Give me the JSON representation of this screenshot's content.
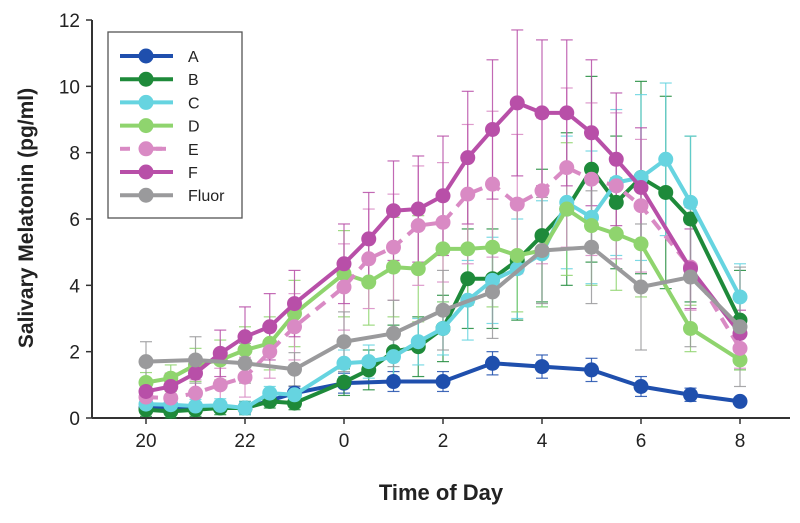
{
  "chart_data": {
    "type": "line",
    "title": "",
    "xlabel": "Time of Day",
    "ylabel": "Salivary Melatonin (pg/ml)",
    "ylim": [
      0,
      12
    ],
    "yticks": [
      "0",
      "2",
      "4",
      "6",
      "8",
      "10",
      "12"
    ],
    "xticks": [
      "20",
      "22",
      "0",
      "2",
      "4",
      "6",
      "8"
    ],
    "grid": false,
    "legend_position": "top-left",
    "x": [
      20,
      20.5,
      21,
      21.5,
      22,
      22.5,
      23,
      0,
      0.5,
      1,
      1.5,
      2,
      2.5,
      3,
      3.5,
      4,
      4.5,
      5,
      5.5,
      6,
      6.5,
      7,
      8
    ],
    "series": [
      {
        "name": "A",
        "color": "#1f4fad",
        "dashed": false,
        "values": [
          0.3,
          null,
          0.3,
          null,
          0.3,
          null,
          0.75,
          1.05,
          null,
          1.1,
          null,
          1.1,
          null,
          1.65,
          null,
          1.55,
          null,
          1.45,
          null,
          0.95,
          null,
          0.7,
          0.5
        ],
        "error": [
          0.15,
          null,
          0.15,
          null,
          0.15,
          null,
          0.2,
          0.3,
          null,
          0.3,
          null,
          0.3,
          null,
          0.35,
          null,
          0.35,
          null,
          0.35,
          null,
          0.3,
          null,
          0.2,
          0.1
        ]
      },
      {
        "name": "B",
        "color": "#1e8a3a",
        "dashed": false,
        "values": [
          0.25,
          0.2,
          0.25,
          0.3,
          0.3,
          0.5,
          0.45,
          1.08,
          1.45,
          2.0,
          2.15,
          2.7,
          4.2,
          4.2,
          4.75,
          5.5,
          6.3,
          7.5,
          6.5,
          7.25,
          6.8,
          6.0,
          2.95
        ],
        "error": [
          0.2,
          0.2,
          0.2,
          0.2,
          0.2,
          0.2,
          0.2,
          0.4,
          0.6,
          0.8,
          0.9,
          1.0,
          1.5,
          1.5,
          1.8,
          2.0,
          2.3,
          2.8,
          2.0,
          2.9,
          2.9,
          2.5,
          1.5
        ]
      },
      {
        "name": "C",
        "color": "#66d4e0",
        "dashed": false,
        "values": [
          0.42,
          0.4,
          0.36,
          0.38,
          0.3,
          0.75,
          0.7,
          1.65,
          1.7,
          1.85,
          2.3,
          2.7,
          3.55,
          4.15,
          4.5,
          4.95,
          6.5,
          6.05,
          7.1,
          7.25,
          7.8,
          6.5,
          3.65
        ],
        "error": [
          0.2,
          0.2,
          0.2,
          0.2,
          0.2,
          0.2,
          0.2,
          0.4,
          0.5,
          0.6,
          0.7,
          0.8,
          1.2,
          1.3,
          1.5,
          1.6,
          2.0,
          2.0,
          2.2,
          2.5,
          2.3,
          2.0,
          1.0
        ]
      },
      {
        "name": "D",
        "color": "#8fd46e",
        "dashed": false,
        "values": [
          1.07,
          1.2,
          1.6,
          1.75,
          2.05,
          2.25,
          3.15,
          4.35,
          4.1,
          4.55,
          4.5,
          5.1,
          5.1,
          5.15,
          4.9,
          5.05,
          6.3,
          5.8,
          5.55,
          5.25,
          null,
          2.7,
          1.75
        ],
        "error": [
          0.3,
          0.4,
          0.5,
          0.6,
          0.7,
          0.8,
          1.0,
          1.3,
          1.3,
          1.5,
          1.6,
          1.6,
          1.7,
          1.8,
          1.7,
          1.7,
          2.0,
          1.8,
          1.7,
          1.6,
          null,
          0.7,
          0.3
        ]
      },
      {
        "name": "E",
        "color": "#d98ac4",
        "dashed": true,
        "values": [
          0.63,
          0.6,
          0.75,
          1.0,
          1.23,
          2.0,
          2.75,
          3.95,
          4.8,
          5.15,
          5.8,
          5.9,
          6.75,
          7.05,
          6.45,
          6.85,
          7.55,
          7.2,
          7.0,
          6.4,
          null,
          4.55,
          2.1
        ],
        "error": [
          0.3,
          0.3,
          0.4,
          0.5,
          0.6,
          0.8,
          1.0,
          1.3,
          1.5,
          1.6,
          1.8,
          1.8,
          2.1,
          2.2,
          2.1,
          2.2,
          2.4,
          2.3,
          2.2,
          2.0,
          null,
          1.3,
          0.6
        ]
      },
      {
        "name": "F",
        "color": "#b84fa8",
        "dashed": false,
        "values": [
          0.8,
          0.95,
          1.35,
          1.95,
          2.45,
          2.75,
          3.45,
          4.65,
          5.4,
          6.25,
          6.3,
          6.7,
          7.85,
          8.7,
          9.5,
          9.2,
          9.2,
          8.6,
          7.8,
          6.95,
          null,
          4.5,
          2.55
        ],
        "error": [
          0.3,
          0.4,
          0.5,
          0.7,
          0.9,
          1.0,
          1.0,
          1.2,
          1.4,
          1.5,
          1.6,
          1.8,
          2.0,
          2.1,
          2.2,
          2.2,
          2.2,
          2.2,
          2.0,
          1.8,
          null,
          1.2,
          0.7
        ]
      },
      {
        "name": "Fluor",
        "color": "#9a9a9c",
        "dashed": false,
        "values": [
          1.7,
          null,
          1.75,
          null,
          1.65,
          null,
          1.47,
          2.3,
          null,
          2.55,
          null,
          3.25,
          null,
          3.8,
          null,
          5.05,
          null,
          5.15,
          null,
          3.95,
          null,
          4.25,
          2.75
        ],
        "error": [
          0.6,
          null,
          0.7,
          null,
          0.6,
          null,
          0.5,
          0.9,
          null,
          1.0,
          null,
          1.2,
          null,
          1.4,
          null,
          1.6,
          null,
          1.7,
          null,
          1.9,
          null,
          2.1,
          1.8
        ]
      }
    ]
  }
}
